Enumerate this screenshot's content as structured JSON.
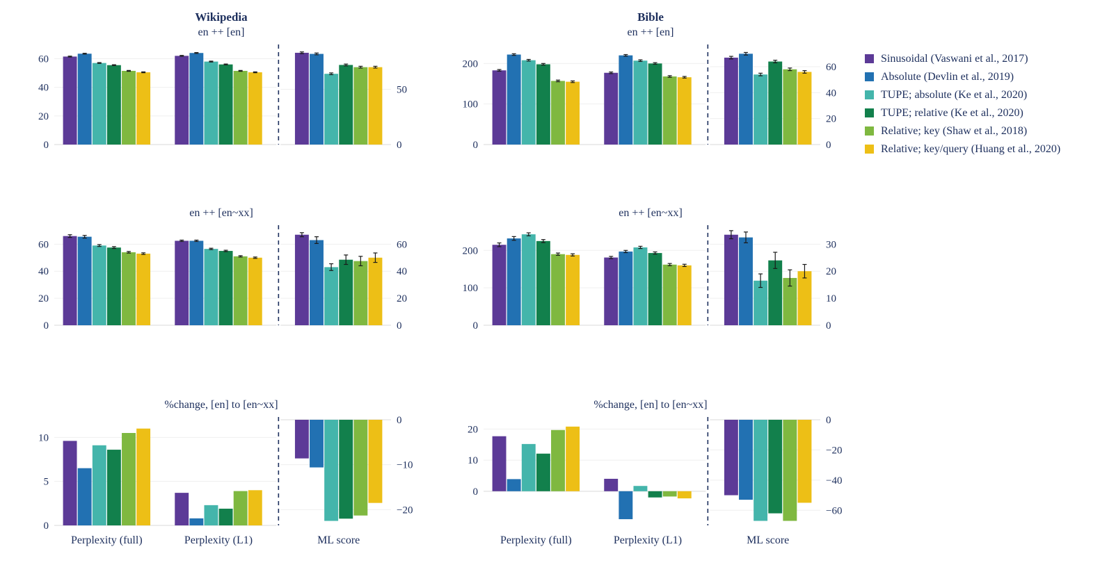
{
  "figure": {
    "columns": [
      {
        "title": "Wikipedia"
      },
      {
        "title": "Bible"
      }
    ]
  },
  "colors": {
    "series": [
      "#5c3a97",
      "#2271b2",
      "#44b5ab",
      "#12804c",
      "#7fb840",
      "#edbf16"
    ],
    "text": "#1d2f5d",
    "grid": "#efefef",
    "zero_line": "#d9d9d9",
    "error_bar": "#1a1a1a"
  },
  "legend": {
    "items": [
      {
        "label": "Sinusoidal (Vaswani et al., 2017)"
      },
      {
        "label": "Absolute (Devlin et al., 2019)"
      },
      {
        "label": "TUPE; absolute (Ke et al., 2020)"
      },
      {
        "label": "TUPE; relative (Ke et al., 2020)"
      },
      {
        "label": "Relative; key (Shaw et al., 2018)"
      },
      {
        "label": "Relative; key/query (Huang et al., 2020)"
      }
    ]
  },
  "chart_data": [
    {
      "type": "bar",
      "dataset": "Wikipedia",
      "title": "en ++ [en]",
      "series_order": [
        "Sinusoidal",
        "Absolute",
        "TUPE; absolute",
        "TUPE; relative",
        "Relative; key",
        "Relative; key/query"
      ],
      "axes": {
        "left": {
          "min": 0,
          "max": 68,
          "ticks": [
            0,
            20,
            40,
            60
          ]
        },
        "right": {
          "min": 0,
          "max": 88,
          "ticks": [
            0,
            50
          ]
        }
      },
      "show_group_labels": false,
      "groups": [
        {
          "label": "Perplexity (full)",
          "axis": "left",
          "values": [
            61.5,
            63.5,
            57,
            55.5,
            51.5,
            50.5
          ],
          "errors": [
            0.3,
            0.3,
            0.3,
            0.3,
            0.3,
            0.3
          ]
        },
        {
          "label": "Perplexity (L1)",
          "axis": "left",
          "values": [
            62,
            64,
            58,
            56,
            51.5,
            50.5
          ],
          "errors": [
            0.3,
            0.3,
            0.3,
            0.3,
            0.3,
            0.3
          ]
        },
        {
          "label": "ML score",
          "axis": "right",
          "values": [
            83,
            82,
            64,
            72,
            70,
            70
          ],
          "errors": [
            0.8,
            0.8,
            0.8,
            0.8,
            0.8,
            0.8
          ]
        }
      ]
    },
    {
      "type": "bar",
      "dataset": "Bible",
      "title": "en ++ [en]",
      "series_order": [
        "Sinusoidal",
        "Absolute",
        "TUPE; absolute",
        "TUPE; relative",
        "Relative; key",
        "Relative; key/query"
      ],
      "axes": {
        "left": {
          "min": 0,
          "max": 240,
          "ticks": [
            0,
            100,
            200
          ]
        },
        "right": {
          "min": 0,
          "max": 75,
          "ticks": [
            0,
            20,
            40,
            60
          ]
        }
      },
      "show_group_labels": false,
      "groups": [
        {
          "label": "Perplexity (full)",
          "axis": "left",
          "values": [
            183,
            222,
            208,
            198,
            157,
            155
          ],
          "errors": [
            2,
            2,
            2,
            2,
            2,
            2
          ]
        },
        {
          "label": "Perplexity (L1)",
          "axis": "left",
          "values": [
            177,
            220,
            207,
            200,
            168,
            166
          ],
          "errors": [
            2,
            2,
            2,
            2,
            2,
            2
          ]
        },
        {
          "label": "ML score",
          "axis": "right",
          "values": [
            67,
            70,
            54,
            64,
            58,
            56
          ],
          "errors": [
            1,
            1,
            1,
            1,
            1,
            1
          ]
        }
      ]
    },
    {
      "type": "bar",
      "dataset": "Wikipedia",
      "title": "en ++ [en~xx]",
      "series_order": [
        "Sinusoidal",
        "Absolute",
        "TUPE; absolute",
        "TUPE; relative",
        "Relative; key",
        "Relative; key/query"
      ],
      "axes": {
        "left": {
          "min": 0,
          "max": 72,
          "ticks": [
            0,
            20,
            40,
            60
          ]
        },
        "right": {
          "min": 0,
          "max": 72,
          "ticks": [
            0,
            20,
            40,
            60
          ]
        }
      },
      "show_group_labels": false,
      "groups": [
        {
          "label": "Perplexity (full)",
          "axis": "left",
          "values": [
            66,
            65.5,
            59,
            57.5,
            54,
            53
          ],
          "errors": [
            1,
            1,
            0.7,
            0.7,
            0.6,
            0.6
          ]
        },
        {
          "label": "Perplexity (L1)",
          "axis": "left",
          "values": [
            62.5,
            62.5,
            56.5,
            55,
            51,
            50
          ],
          "errors": [
            0.5,
            0.5,
            0.5,
            0.5,
            0.5,
            0.5
          ]
        },
        {
          "label": "ML score",
          "axis": "right",
          "values": [
            67,
            63,
            43,
            48.5,
            47.5,
            50
          ],
          "errors": [
            1.5,
            2.5,
            2.5,
            3.5,
            3.5,
            3.5
          ]
        }
      ]
    },
    {
      "type": "bar",
      "dataset": "Bible",
      "title": "en ++ [en~xx]",
      "series_order": [
        "Sinusoidal",
        "Absolute",
        "TUPE; absolute",
        "TUPE; relative",
        "Relative; key",
        "Relative; key/query"
      ],
      "axes": {
        "left": {
          "min": 0,
          "max": 260,
          "ticks": [
            0,
            100,
            200
          ]
        },
        "right": {
          "min": 0,
          "max": 36,
          "ticks": [
            0,
            10,
            20,
            30
          ]
        }
      },
      "show_group_labels": false,
      "groups": [
        {
          "label": "Perplexity (full)",
          "axis": "left",
          "values": [
            215,
            232,
            243,
            225,
            190,
            188
          ],
          "errors": [
            5,
            5,
            4,
            4,
            3,
            3
          ]
        },
        {
          "label": "Perplexity (L1)",
          "axis": "left",
          "values": [
            181,
            197,
            208,
            193,
            162,
            160
          ],
          "errors": [
            3,
            3,
            3,
            3,
            3,
            3
          ]
        },
        {
          "label": "ML score",
          "axis": "right",
          "values": [
            33.5,
            32.5,
            16.5,
            24,
            17.5,
            20
          ],
          "errors": [
            1.5,
            2,
            2.5,
            3,
            3,
            2.5
          ]
        }
      ]
    },
    {
      "type": "bar",
      "dataset": "Wikipedia",
      "title": "%change, [en] to [en~xx]",
      "series_order": [
        "Sinusoidal",
        "Absolute",
        "TUPE; absolute",
        "TUPE; relative",
        "Relative; key",
        "Relative; key/query"
      ],
      "axes": {
        "left": {
          "min": 0,
          "max": 12,
          "ticks": [
            0,
            5,
            10
          ]
        },
        "right": {
          "min": -23.5,
          "max": 0,
          "ticks": [
            0,
            -10,
            -20
          ]
        }
      },
      "show_group_labels": true,
      "groups": [
        {
          "label": "Perplexity (full)",
          "axis": "left",
          "values": [
            9.6,
            6.5,
            9.1,
            8.6,
            10.5,
            11
          ],
          "errors": []
        },
        {
          "label": "Perplexity (L1)",
          "axis": "left",
          "values": [
            3.7,
            0.8,
            2.3,
            1.9,
            3.9,
            4
          ],
          "errors": []
        },
        {
          "label": "ML score",
          "axis": "right",
          "values": [
            -8.6,
            -10.6,
            -22.5,
            -22,
            -21.3,
            -18.5
          ],
          "errors": []
        }
      ]
    },
    {
      "type": "bar",
      "dataset": "Bible",
      "title": "%change, [en] to [en~xx]",
      "series_order": [
        "Sinusoidal",
        "Absolute",
        "TUPE; absolute",
        "TUPE; relative",
        "Relative; key",
        "Relative; key/query"
      ],
      "axes": {
        "left": {
          "min": -11,
          "max": 23,
          "ticks": [
            0,
            10,
            20
          ]
        },
        "right": {
          "min": -70,
          "max": 0,
          "ticks": [
            0,
            -20,
            -40,
            -60
          ]
        }
      },
      "show_group_labels": true,
      "groups": [
        {
          "label": "Perplexity (full)",
          "axis": "left",
          "values": [
            17.7,
            3.9,
            15.2,
            12.1,
            19.7,
            20.8
          ],
          "errors": []
        },
        {
          "label": "Perplexity (L1)",
          "axis": "left",
          "values": [
            4,
            -9,
            1.7,
            -2,
            -1.7,
            -2.3
          ],
          "errors": []
        },
        {
          "label": "ML score",
          "axis": "right",
          "values": [
            -50,
            -53,
            -67,
            -62,
            -67,
            -55
          ],
          "errors": []
        }
      ]
    }
  ]
}
